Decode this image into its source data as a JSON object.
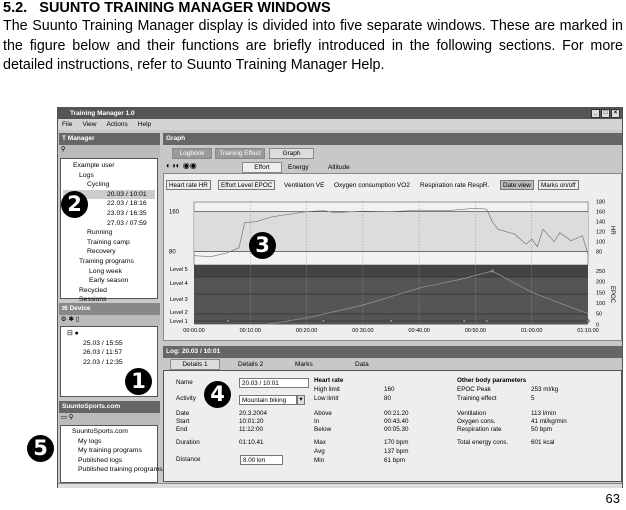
{
  "section": {
    "number": "5.2.",
    "title": "SUUNTO TRAINING MANAGER WINDOWS"
  },
  "body": "The Suunto Training Manager display is divided into five separate windows. These are marked in the figure below and their functions are briefly introduced in the following sections. For more detailed instructions, refer to Suunto Training Manager Help.",
  "page_number": "63",
  "app": {
    "title": "Training Manager 1.0",
    "menu": [
      "File",
      "View",
      "Actions",
      "Help"
    ],
    "t_manager": {
      "title": "T Manager",
      "tree": [
        "Example user",
        "Logs",
        "Cycling",
        "20.03 / 10:01",
        "22.03 / 18:16",
        "23.03 / 16:35",
        "27.03 / 07:59",
        "Running",
        "Training camp",
        "Recovery",
        "Training programs",
        "Long week",
        "Early season",
        "Recycled",
        "Sessions"
      ]
    },
    "device": {
      "title": "t6 Device",
      "tree": [
        "25.03 / 15:55",
        "26.03 / 11:57",
        "22.03 / 12:35"
      ]
    },
    "suuntosports": {
      "title": "SuuntoSports.com",
      "tree": [
        "SuuntoSports.com",
        "My logs",
        "My training programs",
        "Published logs",
        "Published training programs"
      ]
    },
    "graph": {
      "title": "Graph",
      "tabs": [
        "Logbook",
        "Training Effect",
        "Graph"
      ],
      "subtabs": [
        "Effort",
        "Energy",
        "Altitude"
      ],
      "series_buttons": [
        "Heart rate HR",
        "Effort Level EPOC",
        "Ventilation VE",
        "Oxygen consumption VO2",
        "Respiration rate RespR."
      ],
      "date_view": "Date view",
      "marks": "Marks on/off",
      "hr_limits": [
        "160",
        "80"
      ],
      "hr_ticks": [
        "180",
        "160",
        "140",
        "120",
        "100",
        "80"
      ],
      "hr_axis": "HR",
      "epoc_ticks": [
        "250",
        "200",
        "150",
        "100",
        "50",
        "0"
      ],
      "epoc_axis": "EPOC",
      "levels": [
        "Level 5",
        "Level 4",
        "Level 3",
        "Level 2",
        "Level 1"
      ],
      "time_ticks": [
        "00:00.00",
        "00:10.00",
        "00:20.00",
        "00:30.00",
        "00:40.00",
        "00:50.00",
        "01:00.00",
        "01:10.00"
      ]
    },
    "log": {
      "title": "Log: 20.03 / 10:01",
      "tabs": [
        "Details 1",
        "Details 2",
        "Marks",
        "Data"
      ],
      "name_label": "Name",
      "name_value": "20.03 / 10:01",
      "activity_label": "Activity",
      "activity_value": "Mountain biking",
      "date_label": "Date",
      "date_value": "20.3.2004",
      "start_label": "Start",
      "start_value": "10:01:20",
      "end_label": "End",
      "end_value": "11:12:00",
      "duration_label": "Duration",
      "duration_value": "01:10.41",
      "distance_label": "Distance",
      "distance_value": "8.00 km",
      "hr_title": "Heart rate",
      "high_limit": "High limit",
      "high_value": "160",
      "low_limit": "Low limit",
      "low_value": "80",
      "above": "Above",
      "above_value": "00:21.20",
      "in": "In",
      "in_value": "00:43.40",
      "below": "Below",
      "below_value": "00:05.30",
      "max": "Max",
      "max_value": "170 bpm",
      "avg": "Avg",
      "avg_value": "137 bpm",
      "min": "Min",
      "min_value": "61 bpm",
      "other_title": "Other body parameters",
      "epoc_peak": "EPOC Peak",
      "epoc_peak_value": "253 ml/kg",
      "te": "Training effect",
      "te_value": "5",
      "vent": "Ventilation",
      "vent_value": "113 l/min",
      "oxy": "Oxygen cons.",
      "oxy_value": "41 ml/kg/min",
      "resp": "Respiration rate",
      "resp_value": "50 bpm",
      "energy": "Total energy cons.",
      "energy_value": "601 kcal"
    }
  },
  "callouts": [
    "1",
    "2",
    "3",
    "4",
    "5"
  ],
  "chart_data": {
    "type": "line",
    "xlabel": "",
    "x_unit": "minutes",
    "series": [
      {
        "name": "HR",
        "x": [
          0,
          3,
          6,
          8,
          9,
          11,
          14,
          17,
          20,
          23,
          25,
          30,
          35,
          40,
          45,
          50,
          52,
          53,
          54,
          57,
          59,
          60,
          61,
          62,
          64,
          65,
          67,
          69,
          70
        ],
        "y": [
          72,
          70,
          78,
          88,
          138,
          140,
          150,
          155,
          160,
          162,
          158,
          161,
          160,
          163,
          162,
          167,
          165,
          140,
          125,
          115,
          95,
          105,
          90,
          125,
          100,
          118,
          102,
          112,
          75
        ]
      },
      {
        "name": "EPOC",
        "x": [
          0,
          13,
          20,
          30,
          40,
          48,
          53,
          60,
          70
        ],
        "y": [
          0,
          0,
          30,
          90,
          170,
          215,
          250,
          150,
          50
        ]
      }
    ],
    "hr_ylim": [
      80,
      180
    ],
    "epoc_ylim": [
      0,
      250
    ],
    "xlim": [
      0,
      70
    ]
  }
}
